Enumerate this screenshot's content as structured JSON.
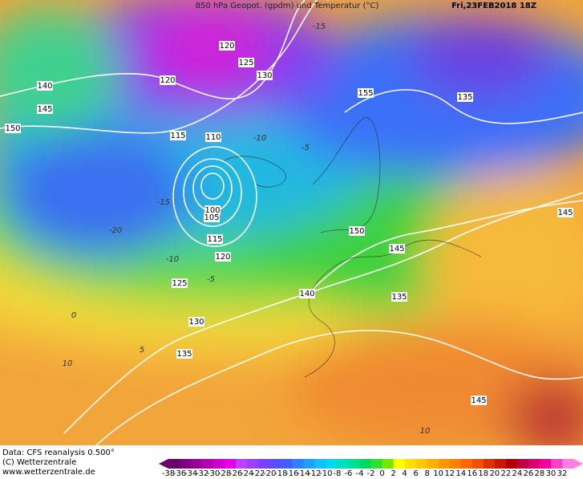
{
  "header": {
    "title": "850 hPa Geopot. (gpdm) und Temperatur (°C)",
    "date": "Fri,23FEB2018 18Z"
  },
  "footer": {
    "source": "Data: CFS reanalysis 0.500°",
    "copyright": "(C) Wetterzentrale",
    "url": "www.wetterzentrale.de"
  },
  "colorbar": {
    "labels": [
      -38,
      -36,
      -34,
      -32,
      -30,
      -28,
      -26,
      -24,
      -22,
      -20,
      -18,
      -16,
      -14,
      -12,
      -10,
      -8,
      -6,
      -4,
      -2,
      0,
      2,
      4,
      6,
      8,
      10,
      12,
      14,
      16,
      18,
      20,
      22,
      24,
      26,
      28,
      30,
      32
    ],
    "colors": [
      "#6a006a",
      "#80007f",
      "#9a0099",
      "#b300b3",
      "#cc00cc",
      "#e600e6",
      "#c040ff",
      "#9a40ff",
      "#7a40ff",
      "#5a4cff",
      "#3f60ff",
      "#2f80ff",
      "#1fa0ff",
      "#10c0ff",
      "#00d8f0",
      "#00e0c0",
      "#00e090",
      "#00d860",
      "#30e030",
      "#70e800",
      "#ffff00",
      "#ffe000",
      "#ffc800",
      "#ffb000",
      "#ff9800",
      "#ff8000",
      "#ff6800",
      "#f05000",
      "#e03000",
      "#c81800",
      "#b00000",
      "#c00040",
      "#d80070",
      "#f000a0",
      "#ff40c0",
      "#ff80e0"
    ]
  },
  "geopotential_labels": [
    120,
    125,
    130,
    120,
    140,
    145,
    150,
    115,
    110,
    155,
    135,
    100,
    105,
    115,
    120,
    125,
    130,
    135,
    140,
    150,
    145,
    135,
    145,
    145
  ],
  "temperature_labels": [
    -15,
    -20,
    -15,
    -10,
    -5,
    0,
    5,
    10,
    10,
    -5,
    -10
  ]
}
